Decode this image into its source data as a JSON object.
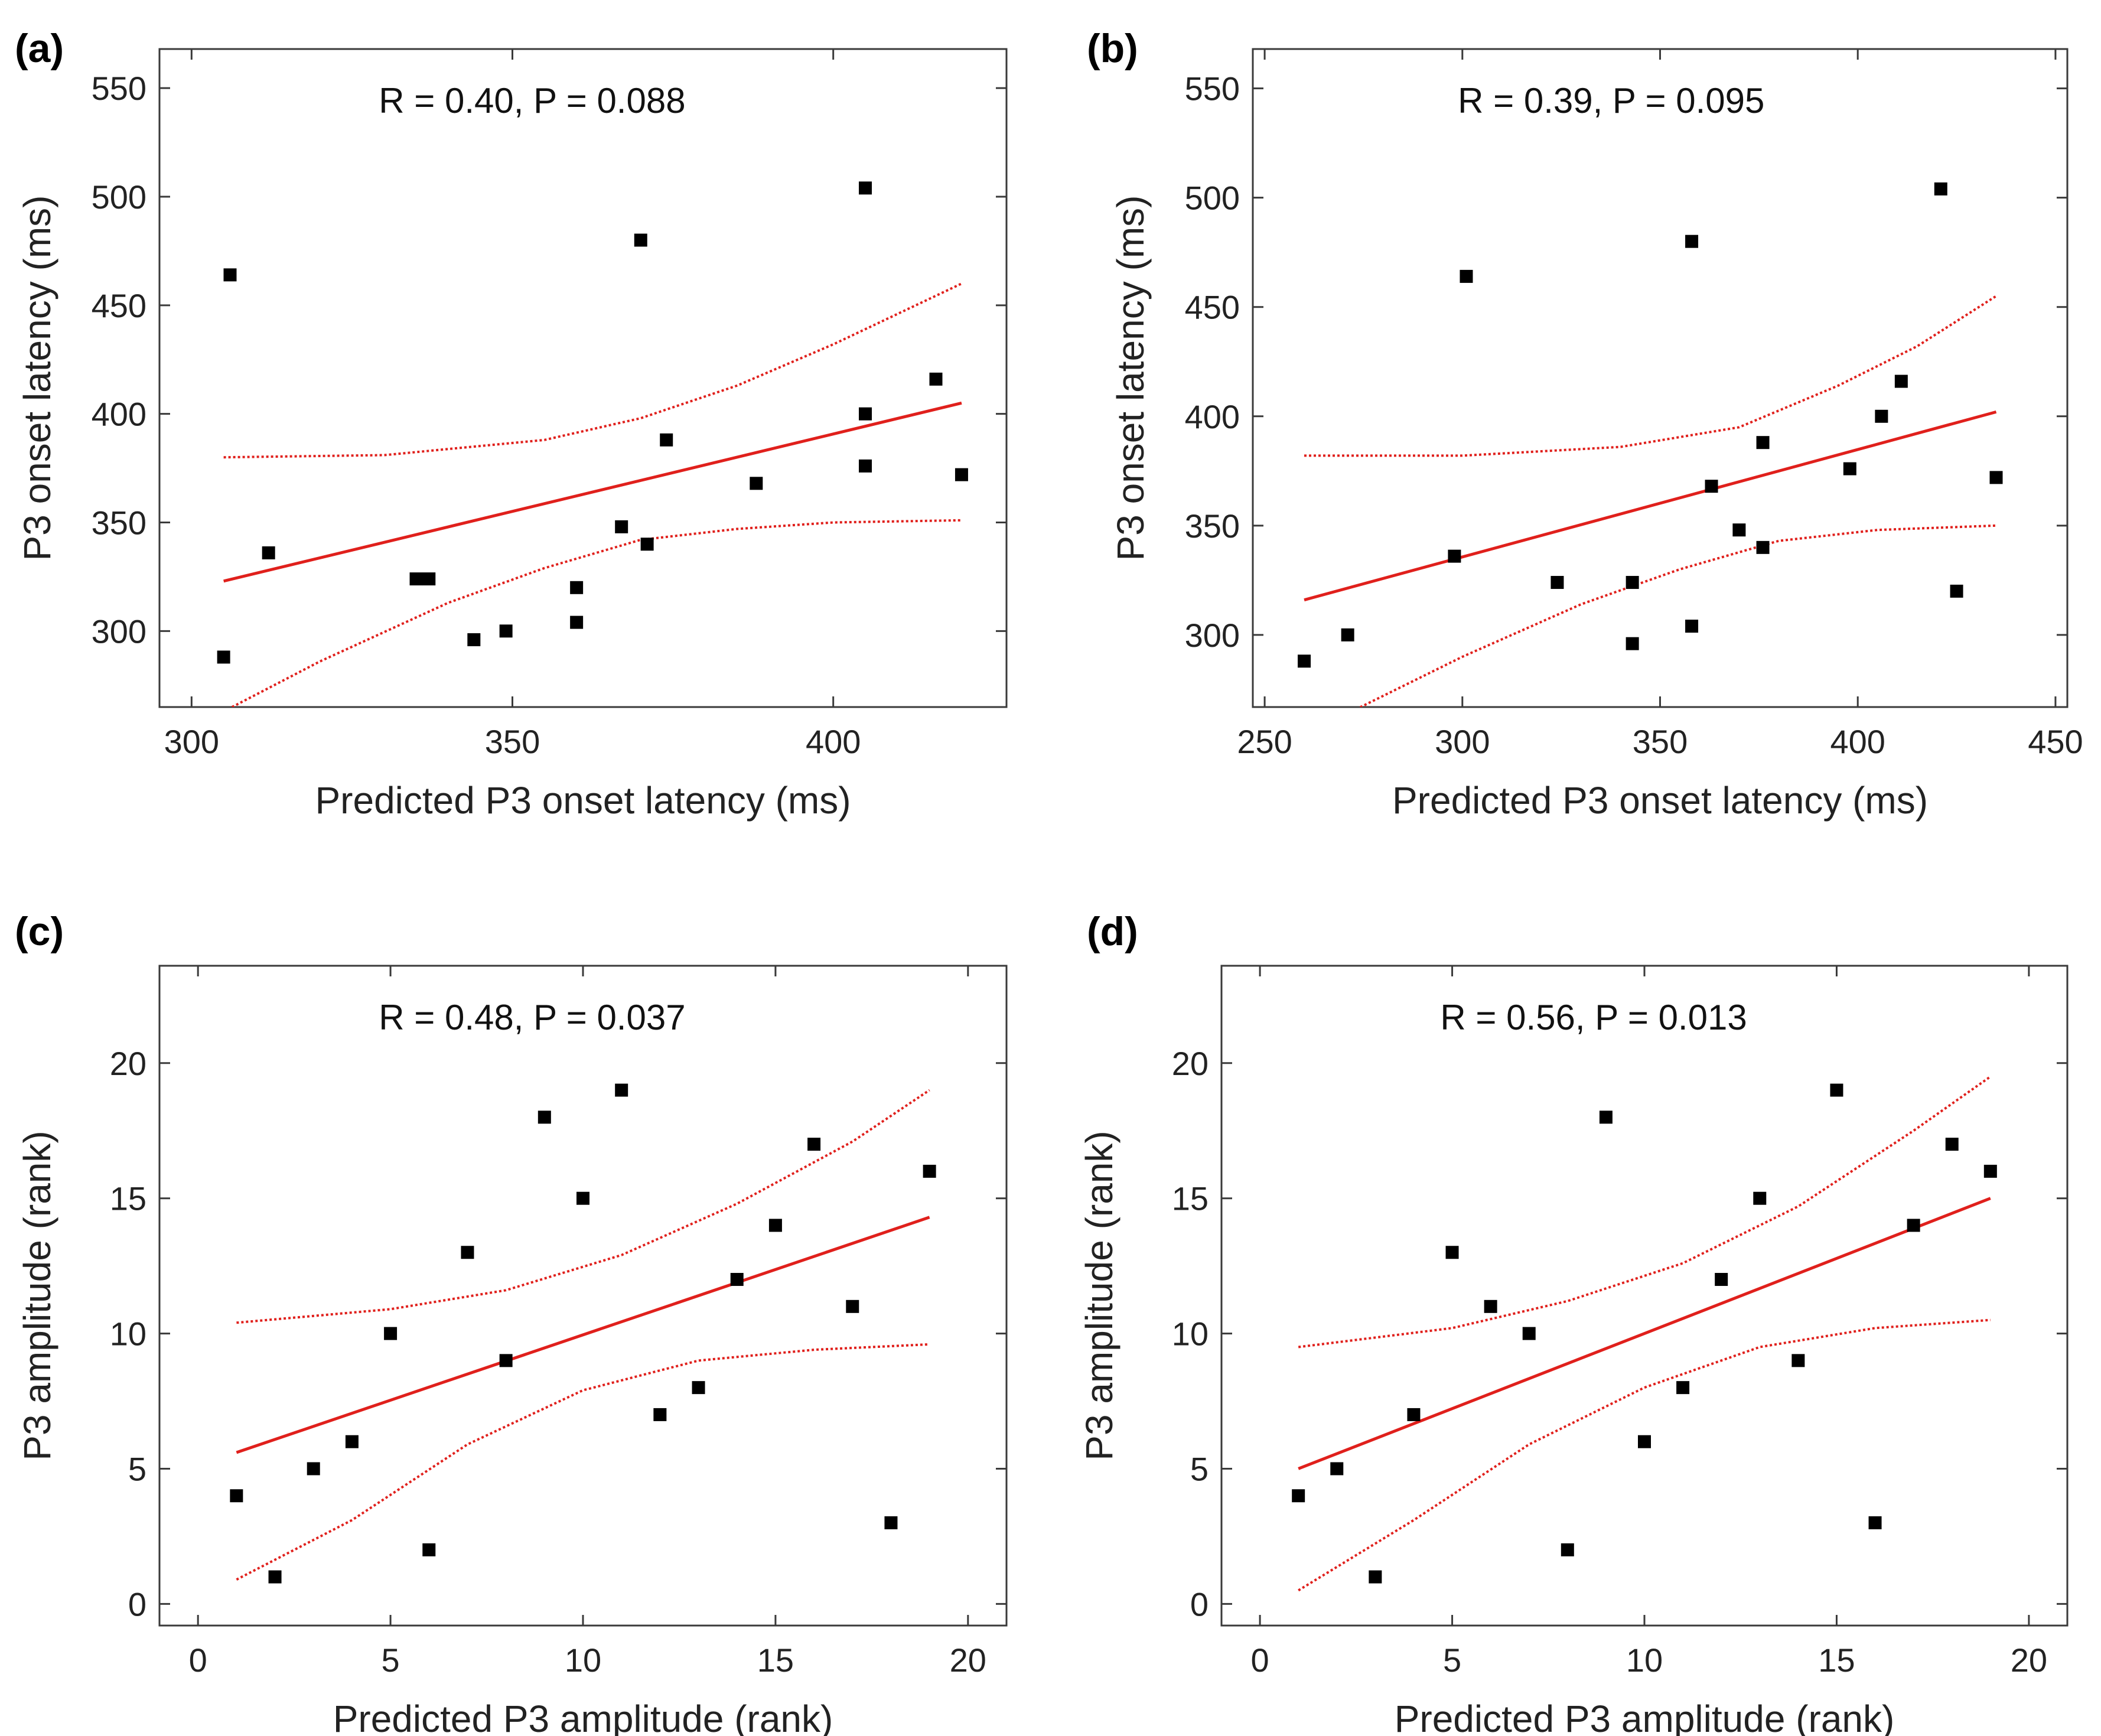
{
  "chart_data": [
    {
      "type": "scatter",
      "panel_label": "(a)",
      "annotation": "R = 0.40, P = 0.088",
      "xlabel": "Predicted P3 onset latency (ms)",
      "ylabel": "P3 onset latency (ms)",
      "xlim": [
        295,
        427
      ],
      "ylim": [
        265,
        568
      ],
      "xticks": [
        300,
        350,
        400
      ],
      "yticks": [
        300,
        350,
        400,
        450,
        500,
        550
      ],
      "grid": false,
      "points": {
        "x": [
          305,
          312,
          335,
          337,
          344,
          349,
          360,
          360,
          367,
          370,
          371,
          374,
          388,
          405,
          405,
          405,
          416,
          420,
          306
        ],
        "y": [
          288,
          336,
          324,
          324,
          296,
          300,
          304,
          320,
          348,
          480,
          340,
          388,
          368,
          504,
          400,
          376,
          416,
          372,
          464
        ]
      },
      "fit_line": {
        "x": [
          305,
          420
        ],
        "y": [
          323,
          405
        ]
      },
      "ci_upper": {
        "x": [
          305,
          330,
          355,
          370,
          385,
          400,
          420
        ],
        "y": [
          380,
          381,
          388,
          398,
          413,
          432,
          460
        ]
      },
      "ci_lower": {
        "x": [
          305,
          320,
          340,
          355,
          370,
          385,
          400,
          420
        ],
        "y": [
          263,
          286,
          313,
          329,
          342,
          347,
          350,
          351
        ]
      },
      "colors": {
        "points": "#000000",
        "fit": "#e0201c",
        "ci": "#e0201c"
      }
    },
    {
      "type": "scatter",
      "panel_label": "(b)",
      "annotation": "R = 0.39, P = 0.095",
      "xlabel": "Predicted P3 onset latency (ms)",
      "ylabel": "P3 onset latency (ms)",
      "xlim": [
        247,
        453
      ],
      "ylim": [
        267,
        568
      ],
      "xticks": [
        250,
        300,
        350,
        400,
        450
      ],
      "yticks": [
        300,
        350,
        400,
        450,
        500,
        550
      ],
      "grid": false,
      "points": {
        "x": [
          260,
          271,
          298,
          301,
          324,
          343,
          343,
          358,
          358,
          363,
          370,
          376,
          376,
          398,
          406,
          411,
          421,
          425,
          435
        ],
        "y": [
          288,
          300,
          336,
          464,
          324,
          324,
          296,
          480,
          304,
          368,
          348,
          388,
          340,
          376,
          400,
          416,
          504,
          320,
          372
        ]
      },
      "fit_line": {
        "x": [
          260,
          435
        ],
        "y": [
          316,
          402
        ]
      },
      "ci_upper": {
        "x": [
          260,
          300,
          340,
          370,
          395,
          415,
          435
        ],
        "y": [
          382,
          382,
          386,
          395,
          414,
          432,
          455
        ]
      },
      "ci_lower": {
        "x": [
          272,
          300,
          330,
          355,
          380,
          405,
          435
        ],
        "y": [
          265,
          290,
          314,
          330,
          343,
          348,
          350
        ]
      },
      "colors": {
        "points": "#000000",
        "fit": "#e0201c",
        "ci": "#e0201c"
      }
    },
    {
      "type": "scatter",
      "panel_label": "(c)",
      "annotation": "R = 0.48, P = 0.037",
      "xlabel": "Predicted P3 amplitude (rank)",
      "ylabel": "P3 amplitude (rank)",
      "xlim": [
        -1,
        21
      ],
      "ylim": [
        -0.8,
        23.6
      ],
      "xticks": [
        0,
        5,
        10,
        15,
        20
      ],
      "yticks": [
        0,
        5,
        10,
        15,
        20
      ],
      "grid": false,
      "points": {
        "x": [
          1,
          2,
          3,
          4,
          5,
          6,
          7,
          8,
          9,
          10,
          11,
          12,
          13,
          14,
          15,
          16,
          17,
          18,
          19
        ],
        "y": [
          4,
          1,
          5,
          6,
          10,
          2,
          13,
          9,
          18,
          15,
          19,
          7,
          8,
          12,
          14,
          17,
          11,
          3,
          16
        ]
      },
      "fit_line": {
        "x": [
          1,
          19
        ],
        "y": [
          5.6,
          14.3
        ]
      },
      "ci_upper": {
        "x": [
          1,
          5,
          8,
          11,
          14,
          17,
          19
        ],
        "y": [
          10.4,
          10.9,
          11.6,
          12.9,
          14.8,
          17.1,
          19.0
        ]
      },
      "ci_lower": {
        "x": [
          1,
          4,
          7,
          10,
          13,
          16,
          19
        ],
        "y": [
          0.9,
          3.1,
          5.9,
          7.9,
          9.0,
          9.4,
          9.6
        ]
      },
      "colors": {
        "points": "#000000",
        "fit": "#e0201c",
        "ci": "#e0201c"
      }
    },
    {
      "type": "scatter",
      "panel_label": "(d)",
      "annotation": "R = 0.56, P = 0.013",
      "xlabel": "Predicted P3 amplitude (rank)",
      "ylabel": "P3 amplitude (rank)",
      "xlim": [
        -1,
        21
      ],
      "ylim": [
        -0.8,
        23.6
      ],
      "xticks": [
        0,
        5,
        10,
        15,
        20
      ],
      "yticks": [
        0,
        5,
        10,
        15,
        20
      ],
      "grid": false,
      "points": {
        "x": [
          1,
          2,
          3,
          4,
          5,
          6,
          7,
          8,
          9,
          10,
          11,
          12,
          13,
          14,
          15,
          16,
          17,
          18,
          19
        ],
        "y": [
          4,
          5,
          1,
          7,
          13,
          11,
          10,
          2,
          18,
          6,
          8,
          12,
          15,
          9,
          19,
          3,
          14,
          17,
          16
        ]
      },
      "fit_line": {
        "x": [
          1,
          19
        ],
        "y": [
          5.0,
          15.0
        ]
      },
      "ci_upper": {
        "x": [
          1,
          5,
          8,
          11,
          14,
          17,
          19
        ],
        "y": [
          9.5,
          10.2,
          11.2,
          12.6,
          14.7,
          17.5,
          19.5
        ]
      },
      "ci_lower": {
        "x": [
          1,
          4,
          7,
          10,
          13,
          16,
          19
        ],
        "y": [
          0.5,
          3.1,
          5.9,
          8.0,
          9.5,
          10.2,
          10.5
        ]
      },
      "colors": {
        "points": "#000000",
        "fit": "#e0201c",
        "ci": "#e0201c"
      }
    }
  ]
}
